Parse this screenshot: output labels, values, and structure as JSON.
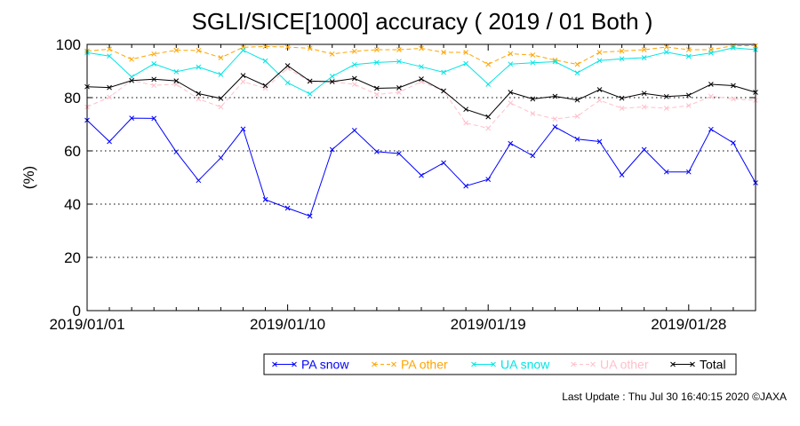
{
  "chart_data": {
    "type": "line",
    "title": "SGLI/SICE[1000] accuracy ( 2019 / 01 Both )",
    "ylabel": "(%)",
    "xlabel": "",
    "ylim": [
      0,
      100
    ],
    "yticks": [
      "0",
      "20",
      "40",
      "60",
      "80",
      "100"
    ],
    "xtick_labels": [
      "2019/01/01",
      "2019/01/10",
      "2019/01/19",
      "2019/01/28"
    ],
    "xtick_days": [
      1,
      10,
      19,
      28
    ],
    "grid": "dotted horizontal",
    "x": [
      1,
      2,
      3,
      4,
      5,
      6,
      7,
      8,
      9,
      10,
      11,
      12,
      13,
      14,
      15,
      16,
      17,
      18,
      19,
      20,
      21,
      22,
      23,
      24,
      25,
      26,
      27,
      28,
      29,
      30,
      31
    ],
    "series": [
      {
        "name": "PA snow",
        "color": "#0000ff",
        "dash": "solid",
        "values": [
          71.5,
          63.5,
          72.3,
          72.2,
          59.6,
          48.9,
          57.4,
          68.2,
          41.7,
          38.5,
          35.5,
          60.5,
          67.7,
          59.7,
          59.0,
          50.8,
          55.5,
          46.8,
          49.3,
          62.8,
          58.2,
          69.0,
          64.4,
          63.5,
          51.0,
          60.5,
          52.1,
          52.1,
          68.1,
          63.0,
          48.0
        ]
      },
      {
        "name": "PA other",
        "color": "#ffa500",
        "dash": "dashed",
        "values": [
          97.5,
          98.2,
          94.4,
          96.4,
          97.8,
          97.7,
          95.0,
          98.9,
          99.2,
          99.0,
          98.5,
          96.4,
          97.4,
          98.0,
          98.0,
          98.5,
          97.0,
          97.0,
          92.5,
          96.5,
          96.0,
          94.1,
          92.5,
          97.0,
          97.5,
          98.0,
          99.0,
          98.0,
          98.0,
          99.5,
          99.5
        ]
      },
      {
        "name": "UA snow",
        "color": "#00e5e5",
        "dash": "solid",
        "values": [
          96.9,
          95.6,
          87.8,
          92.7,
          89.7,
          91.5,
          88.7,
          97.8,
          93.8,
          85.6,
          81.4,
          88.0,
          92.4,
          93.2,
          93.6,
          91.6,
          89.5,
          92.8,
          85.0,
          92.6,
          93.1,
          93.5,
          89.3,
          93.9,
          94.6,
          95.0,
          97.1,
          95.5,
          96.8,
          98.7,
          98.0
        ]
      },
      {
        "name": "UA other",
        "color": "#ffc0cb",
        "dash": "dashed",
        "values": [
          76.5,
          80.2,
          86.5,
          84.6,
          85.0,
          79.5,
          76.5,
          86.0,
          83.5,
          91.0,
          86.0,
          86.0,
          85.0,
          81.2,
          82.0,
          86.0,
          82.5,
          70.5,
          68.5,
          78.0,
          74.0,
          72.0,
          73.0,
          79.0,
          76.0,
          76.5,
          76.0,
          77.0,
          80.5,
          79.5,
          79.0
        ]
      },
      {
        "name": "Total",
        "color": "#000000",
        "dash": "solid",
        "values": [
          84.1,
          83.8,
          86.4,
          86.9,
          86.3,
          81.5,
          79.7,
          88.3,
          84.5,
          92.0,
          86.2,
          86.0,
          87.2,
          83.5,
          83.7,
          87.0,
          82.5,
          75.6,
          72.8,
          82.0,
          79.5,
          80.5,
          79.1,
          83.0,
          79.8,
          81.6,
          80.4,
          80.9,
          85.0,
          84.5,
          82.0
        ]
      }
    ],
    "legend_position": "bottom-right"
  },
  "footer": {
    "text": "Last Update : Thu Jul 30 16:40:15 2020  ©JAXA"
  }
}
